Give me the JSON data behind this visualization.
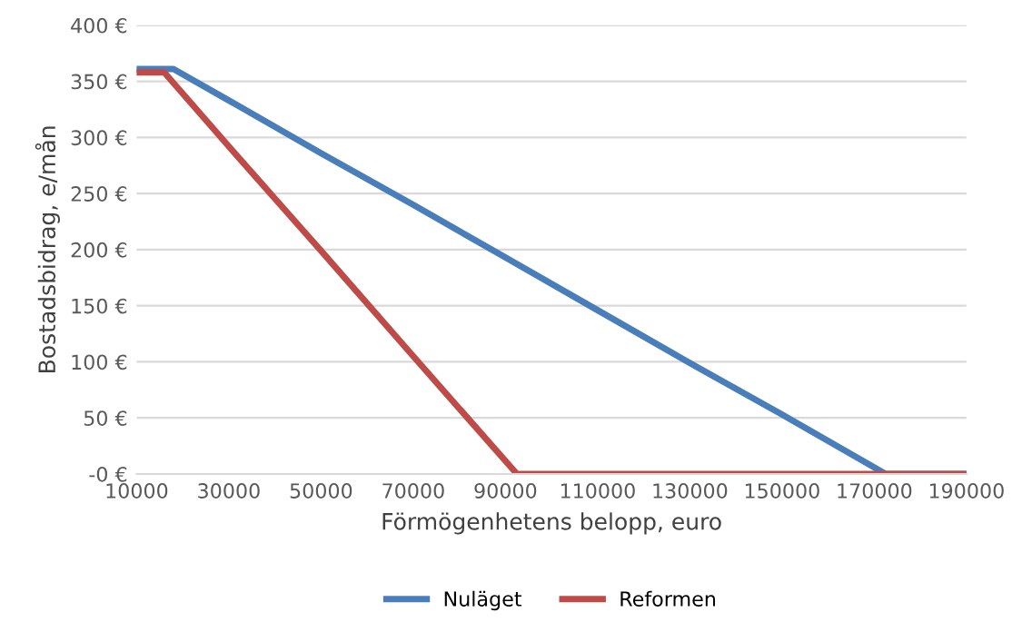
{
  "chart_data": {
    "type": "line",
    "xlabel": "Förmögenhetens belopp, euro",
    "ylabel": "Bostadsbidrag, e/mån",
    "xlim": [
      10000,
      190000
    ],
    "xticks": [
      10000,
      30000,
      50000,
      70000,
      90000,
      110000,
      130000,
      150000,
      170000,
      190000
    ],
    "ylim": [
      0,
      400
    ],
    "yticks": [
      {
        "value": 0,
        "label": "-0 €"
      },
      {
        "value": 50,
        "label": "50 €"
      },
      {
        "value": 100,
        "label": "100 €"
      },
      {
        "value": 150,
        "label": "150 €"
      },
      {
        "value": 200,
        "label": "200 €"
      },
      {
        "value": 250,
        "label": "250 €"
      },
      {
        "value": 300,
        "label": "300 €"
      },
      {
        "value": 350,
        "label": "350 €"
      },
      {
        "value": 400,
        "label": "400 €"
      }
    ],
    "grid": "y",
    "legend": "bottom",
    "marker": "none",
    "line_style": "solid",
    "series": [
      {
        "name": "Nuläget",
        "color": "#4a7ebb",
        "x": [
          10000,
          18000,
          30000,
          50000,
          70000,
          90000,
          110000,
          130000,
          150000,
          172500,
          190000
        ],
        "values": [
          361,
          361,
          333,
          286,
          240,
          193,
          146,
          99,
          53,
          0,
          0
        ]
      },
      {
        "name": "Reformen",
        "color": "#be4b48",
        "x": [
          10000,
          16000,
          30000,
          50000,
          70000,
          92500,
          190000
        ],
        "values": [
          358,
          358,
          292,
          199,
          105,
          0,
          0
        ]
      }
    ]
  }
}
